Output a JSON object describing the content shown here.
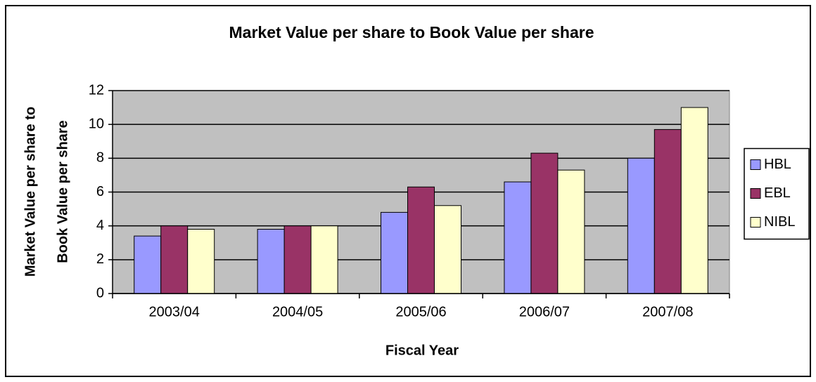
{
  "chart_data": {
    "type": "bar",
    "title": "Market Value per share to Book Value per share",
    "x_label": "Fiscal Year",
    "y_label": [
      "Market Value per share to",
      "Book Value per share"
    ],
    "categories": [
      "2003/04",
      "2004/05",
      "2005/06",
      "2006/07",
      "2007/08"
    ],
    "series": [
      {
        "name": "HBL",
        "color": "#9999ff",
        "values": [
          3.4,
          3.8,
          4.8,
          6.6,
          8.0
        ]
      },
      {
        "name": "EBL",
        "color": "#993366",
        "values": [
          4.0,
          4.0,
          6.3,
          8.3,
          9.7
        ]
      },
      {
        "name": "NIBL",
        "color": "#ffffcc",
        "values": [
          3.8,
          4.0,
          5.2,
          7.3,
          11.0
        ]
      }
    ],
    "ylim": [
      0,
      12
    ],
    "yticks": [
      0,
      2,
      4,
      6,
      8,
      10,
      12
    ],
    "grid": true,
    "legend": "right",
    "plot_background": "#c0c0c0"
  }
}
